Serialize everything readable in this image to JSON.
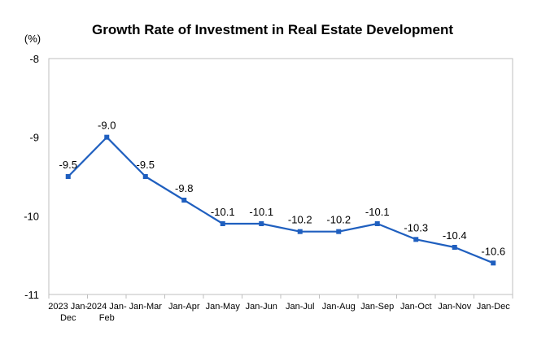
{
  "chart_data": {
    "type": "line",
    "title": "Growth Rate of Investment in Real Estate Development",
    "unit_label": "(%)",
    "xlabel": "",
    "ylabel": "",
    "categories": [
      [
        "2023 Jan-",
        "Dec"
      ],
      [
        "2024 Jan-",
        "Feb"
      ],
      [
        "Jan-Mar"
      ],
      [
        "Jan-Apr"
      ],
      [
        "Jan-May"
      ],
      [
        "Jan-Jun"
      ],
      [
        "Jan-Jul"
      ],
      [
        "Jan-Aug"
      ],
      [
        "Jan-Sep"
      ],
      [
        "Jan-Oct"
      ],
      [
        "Jan-Nov"
      ],
      [
        "Jan-Dec"
      ]
    ],
    "values": [
      -9.5,
      -9.0,
      -9.5,
      -9.8,
      -10.1,
      -10.1,
      -10.2,
      -10.2,
      -10.1,
      -10.3,
      -10.4,
      -10.6
    ],
    "data_labels": [
      "-9.5",
      "-9.0",
      "-9.5",
      "-9.8",
      "-10.1",
      "-10.1",
      "-10.2",
      "-10.2",
      "-10.1",
      "-10.3",
      "-10.4",
      "-10.6"
    ],
    "ylim": [
      -11,
      -8
    ],
    "yticks": [
      -8,
      -9,
      -10,
      -11
    ],
    "ytick_labels": [
      "-8",
      "-9",
      "-10",
      "-11"
    ],
    "grid": false,
    "legend": "none",
    "line_color": "#1f5fbf",
    "marker_color": "#1f5fbf",
    "axis_color": "#bfbfbf"
  }
}
